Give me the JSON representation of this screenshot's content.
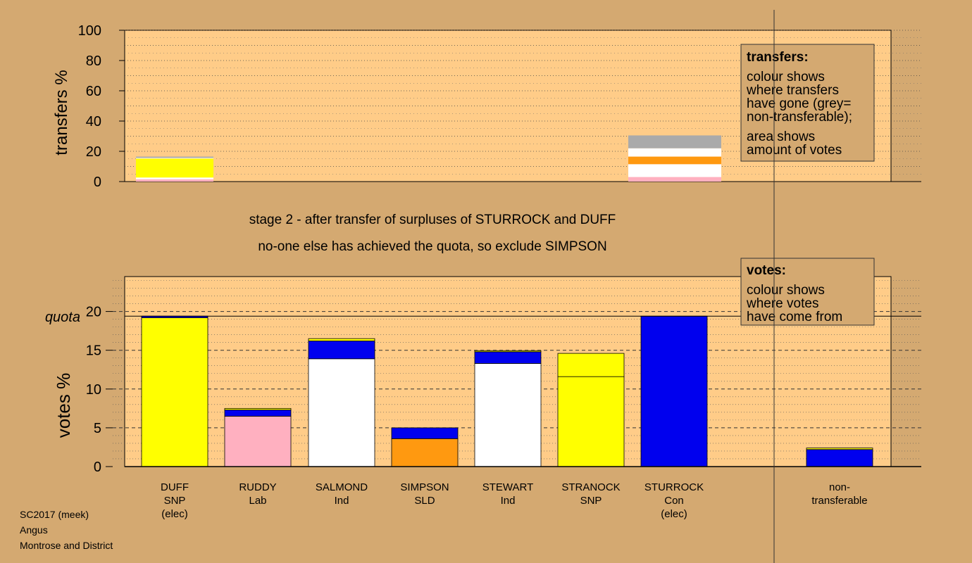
{
  "colors": {
    "background": "#d4a971",
    "plot_bg": "#ffcc88",
    "SNP": "#ffff00",
    "Lab": "#ffb0c0",
    "Ind": "#ffffff",
    "SLD": "#ff9910",
    "Con": "#0000ee",
    "nontransferable": "#aaaaaa"
  },
  "stage_text": {
    "line1": "stage 2 - after transfer of surpluses of STURROCK and DUFF",
    "line2": "no-one else has achieved the quota, so exclude SIMPSON"
  },
  "footer": {
    "line1": "SC2017 (meek)",
    "line2": "Angus",
    "line3": "Montrose and District"
  },
  "transfers_legend": {
    "title": "transfers:",
    "lines": [
      "colour shows",
      "where transfers",
      "have gone (grey=",
      "non-transferable);"
    ],
    "lines2": [
      "area shows",
      "amount of votes"
    ]
  },
  "votes_legend": {
    "title": "votes:",
    "lines": [
      "colour shows",
      "where votes",
      "have come from"
    ]
  },
  "chart_data": [
    {
      "type": "bar",
      "stacked": true,
      "ylabel": "transfers %",
      "ylim": [
        0,
        100
      ],
      "yticks": [
        0,
        20,
        40,
        60,
        80,
        100
      ],
      "grid": "dotted",
      "bars": [
        {
          "column": "DUFF",
          "segments": [
            {
              "color_key": "Lab",
              "value": 1.5
            },
            {
              "color_key": "Ind",
              "value": 1.2
            },
            {
              "color_key": "SNP",
              "value": 12.5
            },
            {
              "color_key": "Ind",
              "value": 0.4
            },
            {
              "color_key": "nontransferable",
              "value": 0.9
            }
          ]
        },
        {
          "column": "STURROCK",
          "segments": [
            {
              "color_key": "Lab",
              "value": 3.0
            },
            {
              "color_key": "Ind",
              "value": 8.5
            },
            {
              "color_key": "SLD",
              "value": 5.0
            },
            {
              "color_key": "Ind",
              "value": 5.5
            },
            {
              "color_key": "nontransferable",
              "value": 8.5
            }
          ]
        }
      ]
    },
    {
      "type": "bar",
      "stacked": true,
      "ylabel": "votes %",
      "ylim": [
        0,
        24.5
      ],
      "yticks": [
        0,
        5,
        10,
        15,
        20
      ],
      "quota_label": "quota",
      "quota": 19.4,
      "grid": "dashed",
      "categories": [
        {
          "name": "DUFF",
          "party": "SNP",
          "note": "(elec)"
        },
        {
          "name": "RUDDY",
          "party": "Lab",
          "note": ""
        },
        {
          "name": "SALMOND",
          "party": "Ind",
          "note": ""
        },
        {
          "name": "SIMPSON",
          "party": "SLD",
          "note": ""
        },
        {
          "name": "STEWART",
          "party": "Ind",
          "note": ""
        },
        {
          "name": "STRANOCK",
          "party": "SNP",
          "note": ""
        },
        {
          "name": "STURROCK",
          "party": "Con",
          "note": "(elec)"
        },
        {
          "name": "non-",
          "party": "transferable",
          "note": ""
        }
      ],
      "bars": [
        {
          "segments": [
            {
              "color_key": "SNP",
              "value": 19.2
            },
            {
              "color_key": "Con",
              "value": 0.2
            }
          ]
        },
        {
          "segments": [
            {
              "color_key": "Lab",
              "value": 6.5
            },
            {
              "color_key": "Con",
              "value": 0.8
            },
            {
              "color_key": "SNP",
              "value": 0.2
            }
          ]
        },
        {
          "segments": [
            {
              "color_key": "Ind",
              "value": 13.9
            },
            {
              "color_key": "Con",
              "value": 2.3
            },
            {
              "color_key": "SNP",
              "value": 0.3
            }
          ]
        },
        {
          "segments": [
            {
              "color_key": "SLD",
              "value": 3.6
            },
            {
              "color_key": "Con",
              "value": 1.4
            }
          ]
        },
        {
          "segments": [
            {
              "color_key": "Ind",
              "value": 13.3
            },
            {
              "color_key": "Con",
              "value": 1.5
            },
            {
              "color_key": "SNP",
              "value": 0.15
            }
          ]
        },
        {
          "segments": [
            {
              "color_key": "SNP",
              "value": 11.6
            },
            {
              "color_key": "SNP",
              "value": 3.0
            }
          ]
        },
        {
          "segments": [
            {
              "color_key": "Con",
              "value": 19.4
            }
          ]
        },
        {
          "segments": [
            {
              "color_key": "Con",
              "value": 2.2
            },
            {
              "color_key": "SNP",
              "value": 0.2
            }
          ]
        }
      ]
    }
  ]
}
